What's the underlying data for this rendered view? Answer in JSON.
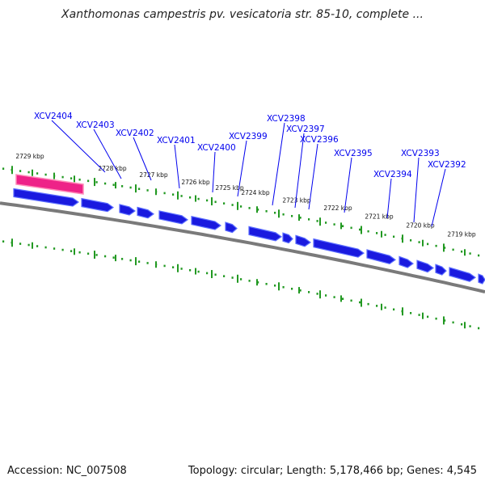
{
  "title": "Xanthomonas campestris pv. vesicatoria str. 85-10, complete ...",
  "footer": {
    "accession": "Accession: NC_007508",
    "summary": "Topology: circular; Length: 5,178,466 bp; Genes: 4,545"
  },
  "colors": {
    "gene": "#1a1adf",
    "gene_shade": "#5a6cff",
    "highlight": "#ee2288",
    "highlight_shade": "#ff8ab8",
    "scale_dots": "#229922",
    "backbone": "#7a7a7a",
    "label": "#0000ee"
  },
  "scale_ticks": [
    {
      "label": "2729 kbp"
    },
    {
      "label": "2728 kbp"
    },
    {
      "label": "2727 kbp"
    },
    {
      "label": "2726 kbp"
    },
    {
      "label": "2725 kbp"
    },
    {
      "label": "2724 kbp"
    },
    {
      "label": "2723 kbp"
    },
    {
      "label": "2722 kbp"
    },
    {
      "label": "2721 kbp"
    },
    {
      "label": "2720 kbp"
    },
    {
      "label": "2719 kbp"
    }
  ],
  "genes": [
    {
      "name": "XCV2404"
    },
    {
      "name": "XCV2403"
    },
    {
      "name": "XCV2402"
    },
    {
      "name": "XCV2401"
    },
    {
      "name": "XCV2400"
    },
    {
      "name": "XCV2399"
    },
    {
      "name": "XCV2398"
    },
    {
      "name": "XCV2397"
    },
    {
      "name": "XCV2396"
    },
    {
      "name": "XCV2395"
    },
    {
      "name": "XCV2394"
    },
    {
      "name": "XCV2393"
    },
    {
      "name": "XCV2392"
    }
  ]
}
